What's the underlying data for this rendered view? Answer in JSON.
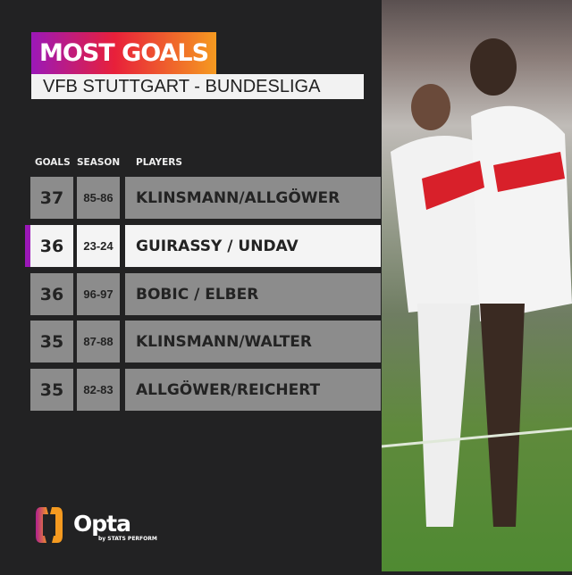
{
  "title": "MOST GOALS",
  "subtitle": "VFB STUTTGART - BUNDESLIGA",
  "headers": {
    "goals": "GOALS",
    "season": "SEASON",
    "players": "PLAYERS"
  },
  "rows": [
    {
      "goals": "37",
      "season": "85-86",
      "players": "KLINSMANN/ALLGÖWER",
      "highlight": false
    },
    {
      "goals": "36",
      "season": "23-24",
      "players": "GUIRASSY / UNDAV",
      "highlight": true
    },
    {
      "goals": "36",
      "season": "96-97",
      "players": "BOBIC / ELBER",
      "highlight": false
    },
    {
      "goals": "35",
      "season": "87-88",
      "players": "KLINSMANN/WALTER",
      "highlight": false
    },
    {
      "goals": "35",
      "season": "82-83",
      "players": "ALLGÖWER/REICHERT",
      "highlight": false
    }
  ],
  "brand": {
    "name": "Opta",
    "tagline": "by STATS PERFORM"
  },
  "colors": {
    "accent_purple": "#9b18b8",
    "accent_orange": "#f59a20",
    "background": "#222223"
  }
}
